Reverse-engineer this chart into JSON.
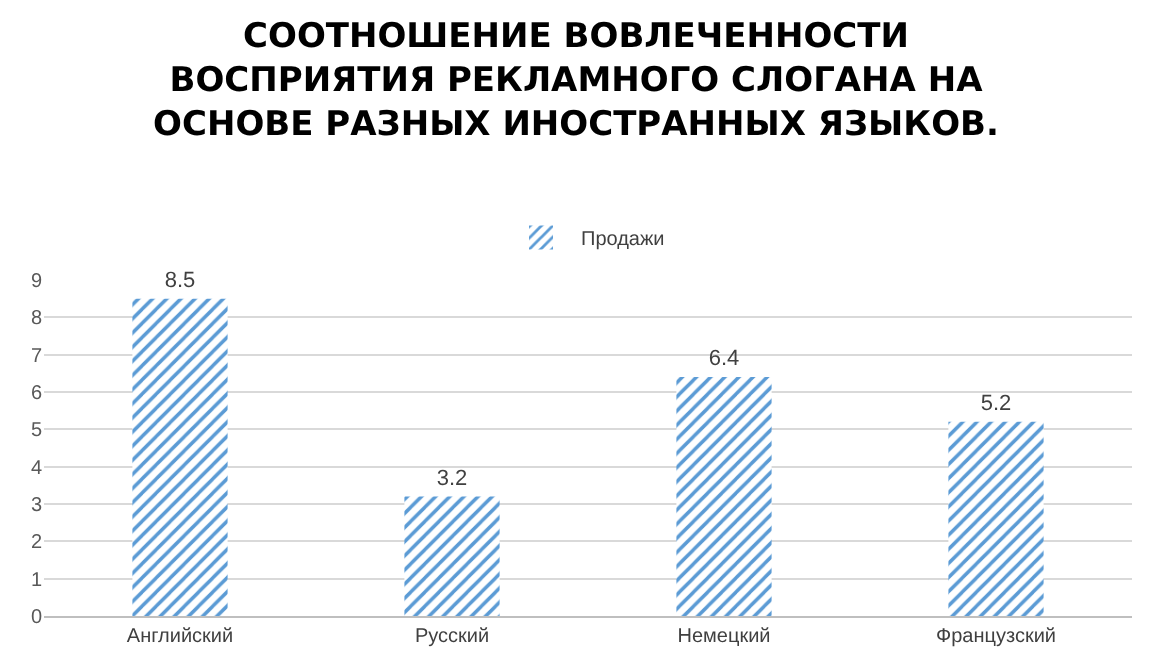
{
  "chart_data": {
    "type": "bar",
    "title": "СООТНОШЕНИЕ ВОВЛЕЧЕННОСТИ\nВОСПРИЯТИЯ РЕКЛАМНОГО СЛОГАНА НА\nОСНОВЕ РАЗНЫХ ИНОСТРАННЫХ ЯЗЫКОВ.",
    "categories": [
      "Английский",
      "Русский",
      "Немецкий",
      "Французский"
    ],
    "series": [
      {
        "name": "Продажи",
        "color": "#5b9bd5",
        "values": [
          8.5,
          3.2,
          6.4,
          5.2
        ]
      }
    ],
    "ylim": [
      0,
      9
    ],
    "yticks": [
      0,
      1,
      2,
      3,
      4,
      5,
      6,
      7,
      8,
      9
    ],
    "grid": "y",
    "legend": "top",
    "data_labels": true
  }
}
